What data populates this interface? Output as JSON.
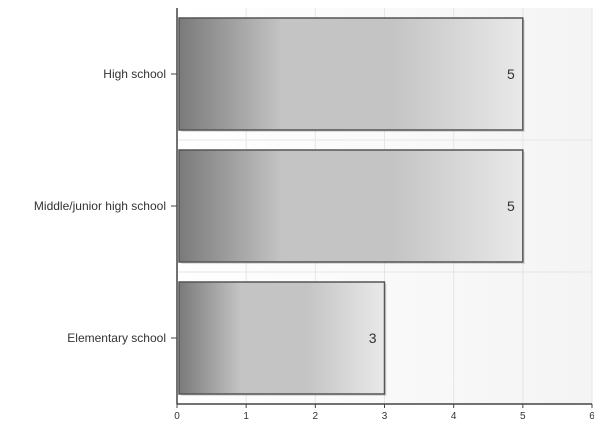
{
  "chart_data": {
    "type": "bar",
    "orientation": "horizontal",
    "categories": [
      "High school",
      "Middle/junior high school",
      "Elementary school"
    ],
    "values": [
      5,
      5,
      3
    ],
    "data_labels": [
      "5",
      "5",
      "3"
    ],
    "x_ticks": [
      0,
      1,
      2,
      3,
      4,
      5,
      6
    ],
    "xlim": [
      0,
      6
    ],
    "grid": true,
    "title": "",
    "xlabel": "",
    "ylabel": "",
    "colors": {
      "bar_dark": "#7a7a7a",
      "bar_mid": "#c4c4c4",
      "bar_light": "#e9e9e9",
      "bar_border": "#555555",
      "grid": "#e6e6e6",
      "axis": "#444444",
      "plot_bg_left": "#ffffff",
      "plot_bg_right": "#f4f4f4"
    }
  }
}
